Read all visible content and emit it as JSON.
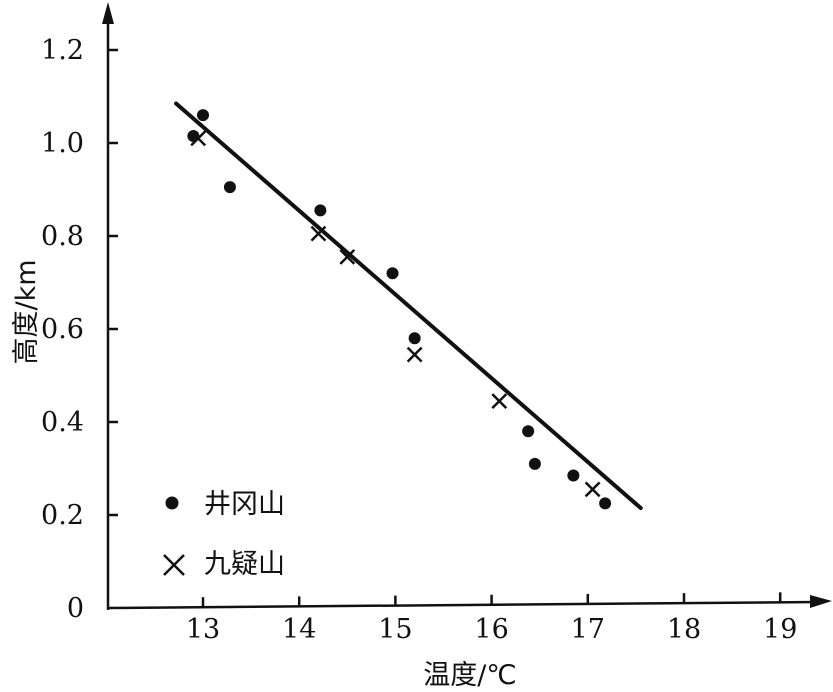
{
  "chart_data": {
    "type": "scatter",
    "xlabel": "温度/℃",
    "ylabel": "高度/km",
    "xlim": [
      12.1,
      19.4
    ],
    "ylim": [
      0,
      1.3
    ],
    "x_ticks": [
      "13",
      "14",
      "15",
      "16",
      "17",
      "18",
      "19"
    ],
    "y_ticks": [
      "0",
      "0.2",
      "0.4",
      "0.6",
      "0.8",
      "1.0",
      "1.2"
    ],
    "grid": false,
    "legend_position": "bottom-left",
    "series": [
      {
        "name": "井冈山",
        "marker": "dot",
        "points": [
          {
            "x": 12.9,
            "y": 1.015
          },
          {
            "x": 13.0,
            "y": 1.06
          },
          {
            "x": 13.28,
            "y": 0.905
          },
          {
            "x": 14.22,
            "y": 0.855
          },
          {
            "x": 14.97,
            "y": 0.72
          },
          {
            "x": 15.2,
            "y": 0.58
          },
          {
            "x": 16.38,
            "y": 0.38
          },
          {
            "x": 16.45,
            "y": 0.31
          },
          {
            "x": 16.85,
            "y": 0.285
          },
          {
            "x": 17.18,
            "y": 0.225
          }
        ]
      },
      {
        "name": "九疑山",
        "marker": "cross",
        "points": [
          {
            "x": 12.95,
            "y": 1.01
          },
          {
            "x": 14.2,
            "y": 0.805
          },
          {
            "x": 14.5,
            "y": 0.755
          },
          {
            "x": 15.2,
            "y": 0.545
          },
          {
            "x": 16.08,
            "y": 0.445
          },
          {
            "x": 17.05,
            "y": 0.255
          }
        ]
      }
    ],
    "trend_line": {
      "x": [
        12.72,
        17.55
      ],
      "y": [
        1.085,
        0.215
      ]
    }
  },
  "colors": {
    "ink": "#111111",
    "background": "#ffffff"
  }
}
